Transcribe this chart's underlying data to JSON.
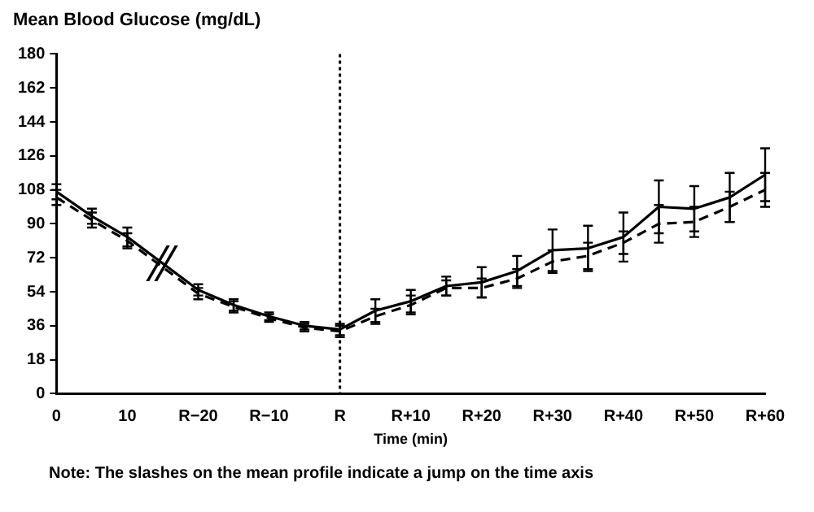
{
  "chart_data": {
    "type": "line",
    "title": "Mean Blood Glucose (mg/dL)",
    "xlabel": "Time (min)",
    "categories": [
      "0",
      null,
      "10",
      null,
      "R−20",
      null,
      "R−10",
      null,
      "R",
      null,
      "R+10",
      null,
      "R+20",
      null,
      "R+30",
      null,
      "R+40",
      null,
      "R+50",
      null,
      "R+60"
    ],
    "series": [
      {
        "color": "#000000",
        "line_style": "solid",
        "values": [
          107,
          94,
          83,
          null,
          55,
          47,
          41,
          36,
          34,
          44,
          49,
          57,
          59,
          65,
          76,
          77,
          83,
          99,
          98,
          104,
          116
        ],
        "errors": [
          4,
          4,
          5,
          null,
          3,
          3,
          2,
          2,
          3,
          6,
          6,
          5,
          8,
          8,
          11,
          12,
          13,
          14,
          12,
          13,
          14
        ]
      },
      {
        "color": "#000000",
        "line_style": "dashed",
        "values": [
          104,
          92,
          81,
          null,
          53,
          46,
          40,
          35,
          33,
          41,
          47,
          56,
          56,
          61,
          70,
          73,
          80,
          90,
          91,
          99,
          108
        ],
        "errors": [
          4,
          4,
          4,
          null,
          3,
          3,
          2,
          2,
          3,
          4,
          5,
          4,
          5,
          5,
          6,
          7,
          6,
          10,
          8,
          8,
          9
        ]
      }
    ],
    "ylim": [
      0,
      180
    ],
    "yticks": [
      0,
      18,
      36,
      54,
      72,
      90,
      108,
      126,
      144,
      162,
      180
    ],
    "grid": false,
    "legend": false,
    "ref_lines": [
      {
        "axis": "x",
        "value": "R",
        "line_style": "dotted",
        "color": "#000000"
      }
    ],
    "annotations": [
      "Note: The slashes on the mean profile indicate a jump on the time axis"
    ]
  }
}
